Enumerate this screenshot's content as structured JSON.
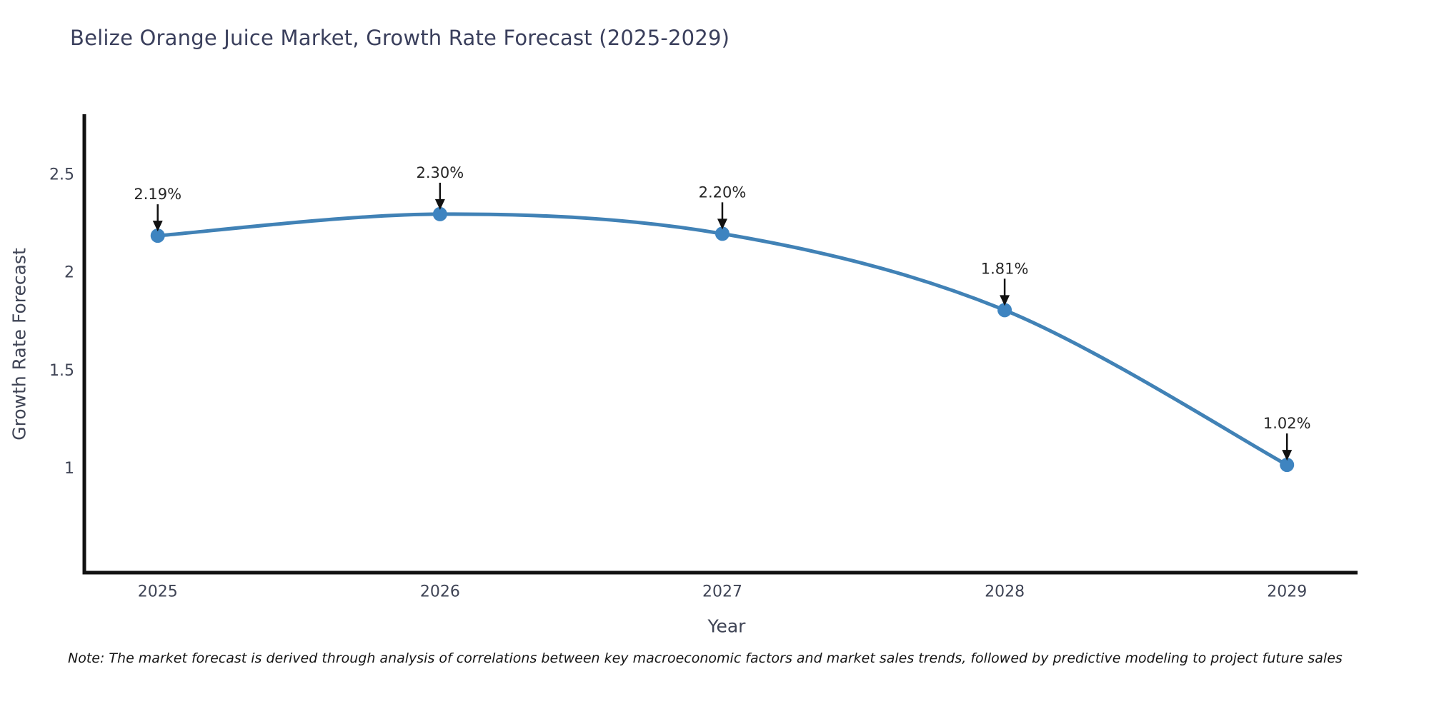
{
  "note": "Note: The market forecast is derived through analysis of correlations between key macroeconomic factors and market sales trends, followed by predictive modeling to project future sales",
  "chart_data": {
    "type": "line",
    "title": "Belize Orange Juice Market, Growth Rate Forecast (2025-2029)",
    "xlabel": "Year",
    "ylabel": "Growth Rate Forecast",
    "x": [
      2025,
      2026,
      2027,
      2028,
      2029
    ],
    "series": [
      {
        "name": "Growth Rate Forecast",
        "values": [
          2.19,
          2.3,
          2.2,
          1.81,
          1.02
        ],
        "point_labels": [
          "2.19%",
          "2.30%",
          "2.20%",
          "1.81%",
          "1.02%"
        ]
      }
    ],
    "xticks": [
      "2025",
      "2026",
      "2027",
      "2028",
      "2029"
    ],
    "yticks": [
      1,
      1.5,
      2,
      2.5
    ],
    "xlim": [
      2024.74,
      2029.25
    ],
    "ylim": [
      0.47,
      2.81
    ],
    "grid": false,
    "legend": false,
    "line_shape": "spline",
    "annotation_offset_note": "value labels sit above each point with a downward arrow",
    "colors": {
      "line": "#4182b6",
      "marker": "#3e84c0",
      "axis": "#121212",
      "tick_text": "#3f4455",
      "title_text": "#3a3f5c",
      "axis_title_text": "#3f4455",
      "annotation_text": "#262626",
      "annotation_arrow": "#111111"
    }
  }
}
